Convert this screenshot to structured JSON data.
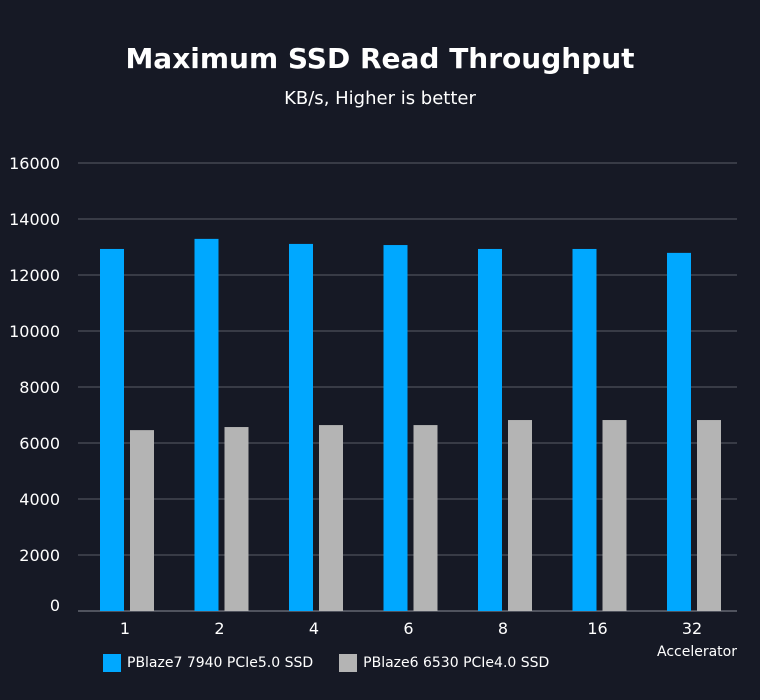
{
  "chart_data": {
    "type": "bar",
    "title": "Maximum SSD Read Throughput",
    "subtitle": "KB/s, Higher is better",
    "xlabel": "Accelerator",
    "ylabel": "",
    "categories": [
      "1",
      "2",
      "4",
      "6",
      "8",
      "16",
      "32"
    ],
    "ylim": [
      0,
      16000
    ],
    "yticks": [
      0,
      2000,
      4000,
      6000,
      8000,
      10000,
      12000,
      14000,
      16000
    ],
    "grid": true,
    "legend_position": "bottom",
    "series": [
      {
        "name": "PBlaze7 7940 PCIe5.0 SSD",
        "color": "#00a8ff",
        "values": [
          12930,
          13290,
          13110,
          13070,
          12930,
          12930,
          12790
        ]
      },
      {
        "name": "PBlaze6 6530 PCIe4.0 SSD",
        "color": "#b4b4b4",
        "values": [
          6460,
          6570,
          6640,
          6640,
          6820,
          6820,
          6820
        ]
      }
    ]
  }
}
